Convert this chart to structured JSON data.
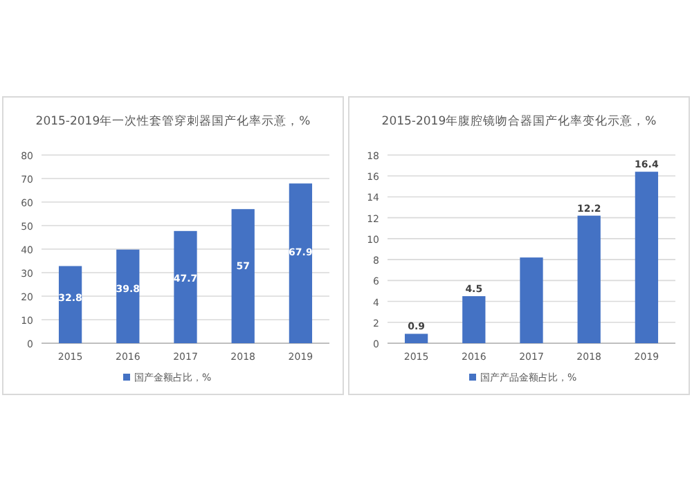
{
  "chart_data": [
    {
      "type": "bar",
      "title": "2015-2019年一次性套管穿刺器国产化率示意，%",
      "categories": [
        "2015",
        "2016",
        "2017",
        "2018",
        "2019"
      ],
      "series": [
        {
          "name": "国产金额占比，%",
          "color": "#4472c4",
          "values": [
            32.8,
            39.8,
            47.7,
            57,
            67.9
          ]
        }
      ],
      "value_labels": [
        "32.8",
        "39.8",
        "47.7",
        "57",
        "67.9"
      ],
      "ylim": [
        0,
        80
      ],
      "yticks": [
        0,
        10,
        20,
        30,
        40,
        50,
        60,
        70,
        80
      ],
      "grid": "y",
      "legend": "bottom"
    },
    {
      "type": "bar",
      "title": "2015-2019年腹腔镜吻合器国产化率变化示意，%",
      "categories": [
        "2015",
        "2016",
        "2017",
        "2018",
        "2019"
      ],
      "series": [
        {
          "name": "国产产品金额占比，%",
          "color": "#4472c4",
          "values": [
            0.9,
            4.5,
            8.2,
            12.2,
            16.4
          ]
        }
      ],
      "value_labels": [
        "0.9",
        "4.5",
        null,
        "12.2",
        "16.4"
      ],
      "ylim": [
        0,
        18
      ],
      "yticks": [
        0,
        2,
        4,
        6,
        8,
        10,
        12,
        14,
        16,
        18
      ],
      "grid": "y",
      "legend": "bottom"
    }
  ]
}
